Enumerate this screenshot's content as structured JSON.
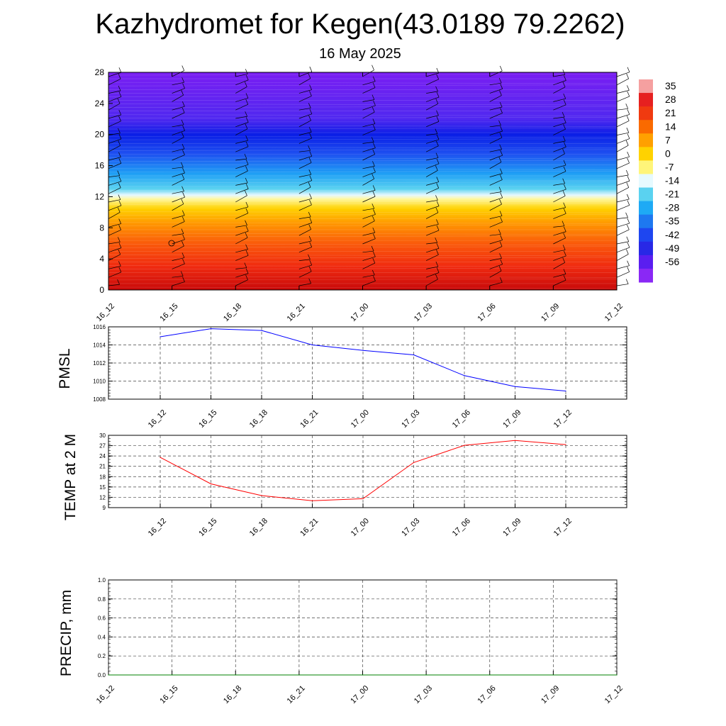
{
  "header": {
    "title": "Kazhydromet for Kegen(43.0189 79.2262)",
    "subtitle": "16 May 2025"
  },
  "chart_data": [
    {
      "type": "heatmap",
      "name": "temperature-wind-cross-section",
      "x_tick_labels": [
        "16_12",
        "16_15",
        "16_18",
        "16_21",
        "17_00",
        "17_03",
        "17_06",
        "17_09",
        "17_12"
      ],
      "y_tick_labels": [
        "0",
        "4",
        "8",
        "12",
        "16",
        "20",
        "24",
        "28"
      ],
      "ylim": [
        0,
        28
      ],
      "colorbar_labels": [
        "35",
        "28",
        "21",
        "14",
        "7",
        "0",
        "-7",
        "-14",
        "-21",
        "-28",
        "-35",
        "-42",
        "-49",
        "-56"
      ],
      "color_profile": [
        {
          "level": 0,
          "color": "#c80a0a"
        },
        {
          "level": 3,
          "color": "#f02a10"
        },
        {
          "level": 6,
          "color": "#fa5a0a"
        },
        {
          "level": 8.5,
          "color": "#ff9600"
        },
        {
          "level": 10.5,
          "color": "#ffd200"
        },
        {
          "level": 11.7,
          "color": "#fff8a0"
        },
        {
          "level": 12.2,
          "color": "#e6f8ff"
        },
        {
          "level": 13,
          "color": "#5ad2f0"
        },
        {
          "level": 15,
          "color": "#1e9ef5"
        },
        {
          "level": 17.5,
          "color": "#1e50f0"
        },
        {
          "level": 20,
          "color": "#0a1ee6"
        },
        {
          "level": 22,
          "color": "#5028f0"
        },
        {
          "level": 28,
          "color": "#7a1ef2"
        }
      ],
      "colorbar_colors": [
        "#f5a0a0",
        "#e62020",
        "#f03a10",
        "#fa6a00",
        "#ffa000",
        "#ffd200",
        "#fff57a",
        "#e6faff",
        "#5ad2f0",
        "#1eaaf5",
        "#1e78f0",
        "#1e46f0",
        "#2828e6",
        "#5a1ef0",
        "#8a28f5"
      ]
    },
    {
      "type": "line",
      "name": "pmsl",
      "ylabel": "PMSL",
      "categories": [
        "16_12",
        "16_15",
        "16_18",
        "16_21",
        "17_00",
        "17_03",
        "17_06",
        "17_09",
        "17_12"
      ],
      "y_tick_labels": [
        "1008",
        "1010",
        "1012",
        "1014",
        "1016"
      ],
      "ylim": [
        1008,
        1016
      ],
      "values": [
        1014.9,
        1015.8,
        1015.6,
        1014.0,
        1013.4,
        1012.9,
        1010.6,
        1009.4,
        1008.9
      ],
      "color": "#0000ff"
    },
    {
      "type": "line",
      "name": "temp-2m",
      "ylabel": "TEMP at 2 M",
      "categories": [
        "16_12",
        "16_15",
        "16_18",
        "16_21",
        "17_00",
        "17_03",
        "17_06",
        "17_09",
        "17_12"
      ],
      "y_tick_labels": [
        "9",
        "12",
        "15",
        "18",
        "21",
        "24",
        "27",
        "30"
      ],
      "ylim": [
        9,
        30
      ],
      "values": [
        23.6,
        15.9,
        12.5,
        11.0,
        11.6,
        22.1,
        27.1,
        28.5,
        27.3
      ],
      "color": "#ff0000"
    },
    {
      "type": "line",
      "name": "precip",
      "ylabel": "PRECIP, mm",
      "x_tick_labels": [
        "16_12",
        "16_15",
        "16_18",
        "16_21",
        "17_00",
        "17_03",
        "17_06",
        "17_09",
        "17_12"
      ],
      "y_tick_labels": [
        "0.0",
        "0.2",
        "0.4",
        "0.6",
        "0.8",
        "1.0"
      ],
      "ylim": [
        0,
        1
      ],
      "values": [
        0,
        0,
        0,
        0,
        0,
        0,
        0,
        0,
        0
      ],
      "color": "#008000"
    }
  ]
}
